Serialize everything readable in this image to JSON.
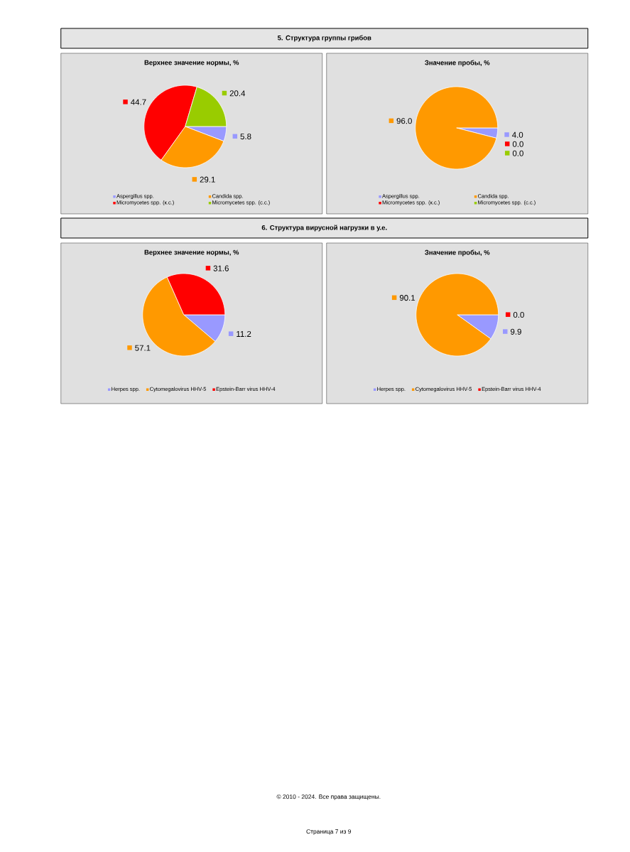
{
  "chart_data": [
    {
      "type": "pie",
      "title": "Верхнее значение нормы, %",
      "annotations": [
        "5. Структура группы грибов"
      ],
      "categories": [
        "Aspergillus spp.",
        "Candida spp.",
        "Micromycetes spp. (к.с.)",
        "Micromycetes spp. (с.с.)"
      ],
      "values": [
        5.8,
        29.1,
        44.7,
        20.4
      ],
      "value_labels": [
        "5.8",
        "29.1",
        "44.7",
        "20.4"
      ],
      "colors": [
        "#9999ff",
        "#ff9900",
        "#ff0000",
        "#99cc00"
      ],
      "legend": "bottom"
    },
    {
      "type": "pie",
      "title": "Значение пробы, %",
      "categories": [
        "Aspergillus spp.",
        "Candida spp.",
        "Micromycetes spp. (к.с.)",
        "Micromycetes spp. (с.с.)"
      ],
      "values": [
        4.0,
        96.0,
        0.0,
        0.0
      ],
      "value_labels": [
        "4.0",
        "96.0",
        "0.0",
        "0.0"
      ],
      "colors": [
        "#9999ff",
        "#ff9900",
        "#ff0000",
        "#99cc00"
      ],
      "legend": "bottom"
    },
    {
      "type": "pie",
      "title": "Верхнее значение нормы, %",
      "annotations": [
        "6. Структура вирусной нагрузки в у.е."
      ],
      "categories": [
        "Herpes spp.",
        "Cytomegalovirus HHV-5",
        "Epstein-Barr virus HHV-4"
      ],
      "values": [
        11.2,
        57.1,
        31.6
      ],
      "value_labels": [
        "11.2",
        "57.1",
        "31.6"
      ],
      "colors": [
        "#9999ff",
        "#ff9900",
        "#ff0000"
      ],
      "legend": "bottom"
    },
    {
      "type": "pie",
      "title": "Значение пробы, %",
      "annotations": [
        "© 2010 - 2024. Все права защищены.",
        "Страница 7 из 9"
      ],
      "categories": [
        "Herpes spp.",
        "Cytomegalovirus HHV-5",
        "Epstein-Barr virus HHV-4"
      ],
      "values": [
        9.9,
        90.1,
        0.0
      ],
      "value_labels": [
        "9.9",
        "90.1",
        "0.0"
      ],
      "colors": [
        "#9999ff",
        "#ff9900",
        "#ff0000"
      ],
      "legend": "bottom"
    }
  ]
}
